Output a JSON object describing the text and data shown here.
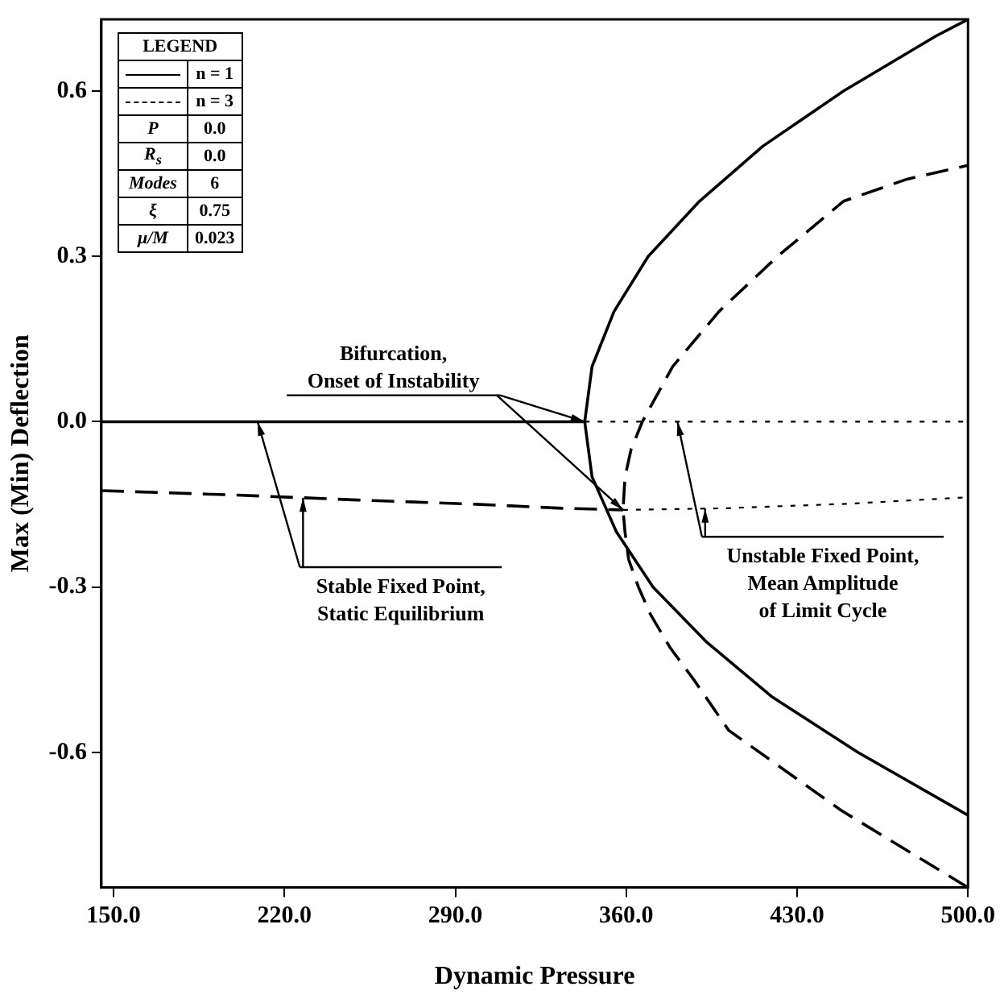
{
  "chart_data": {
    "type": "line",
    "xlabel": "Dynamic Pressure",
    "ylabel": "Max (Min) Deflection",
    "legend_title": "LEGEND",
    "legend": "top left",
    "grid": false,
    "marker": "none",
    "xlim": [
      145,
      500
    ],
    "ylim": [
      -0.845,
      0.73
    ],
    "xticks": [
      {
        "value": 150,
        "label": "150.0"
      },
      {
        "value": 220,
        "label": "220.0"
      },
      {
        "value": 290,
        "label": "290.0"
      },
      {
        "value": 360,
        "label": "360.0"
      },
      {
        "value": 430,
        "label": "430.0"
      },
      {
        "value": 500,
        "label": "500.0"
      }
    ],
    "yticks": [
      {
        "value": -0.6,
        "label": "-0.6"
      },
      {
        "value": -0.3,
        "label": "-0.3"
      },
      {
        "value": 0,
        "label": "0.0"
      },
      {
        "value": 0.3,
        "label": "0.3"
      },
      {
        "value": 0.6,
        "label": "0.6"
      }
    ],
    "series": [
      {
        "name": "n = 1",
        "color": "#000000",
        "line_style": "solid",
        "x": [
          500,
          455,
          420,
          393,
          371,
          356,
          346,
          343,
          346,
          355,
          369,
          390,
          416,
          449,
          487,
          500
        ],
        "values": [
          -0.714,
          -0.6,
          -0.5,
          -0.4,
          -0.3,
          -0.2,
          -0.1,
          0,
          0.1,
          0.2,
          0.3,
          0.4,
          0.5,
          0.6,
          0.7,
          0.73
        ]
      },
      {
        "color": "#000000",
        "line_style": "solid",
        "x": [
          145,
          343
        ],
        "values": [
          0,
          0
        ]
      },
      {
        "color": "#000000",
        "line_style": "dotted",
        "x": [
          343,
          500
        ],
        "values": [
          0,
          0
        ]
      },
      {
        "name": "n = 3",
        "color": "#000000",
        "line_style": "dashed",
        "x": [
          500,
          448,
          402,
          388,
          378,
          370,
          365,
          361,
          359.5,
          358.7,
          359.5,
          362,
          366.6,
          379,
          398,
          422,
          449,
          475,
          500
        ],
        "values": [
          -0.845,
          -0.705,
          -0.56,
          -0.47,
          -0.41,
          -0.35,
          -0.3,
          -0.25,
          -0.2,
          -0.16,
          -0.1,
          -0.05,
          0,
          0.1,
          0.2,
          0.3,
          0.4,
          0.44,
          0.465
        ]
      },
      {
        "color": "#000000",
        "line_style": "dashed",
        "x": [
          145,
          200,
          250,
          300,
          333.6,
          358.7
        ],
        "values": [
          -0.125,
          -0.133,
          -0.142,
          -0.15,
          -0.157,
          -0.16
        ]
      },
      {
        "color": "#000000",
        "line_style": "dotted",
        "x": [
          358.7,
          400,
          450,
          500
        ],
        "values": [
          -0.16,
          -0.157,
          -0.149,
          -0.137
        ]
      }
    ],
    "annotations": [
      {
        "text": "Bifurcation,\nOnset of Instability",
        "x": 343,
        "y": 0
      },
      {
        "text": "Stable Fixed Point,\nStatic Equilibrium",
        "x": 209,
        "y": 0
      },
      {
        "text": "Unstable Fixed Point,\nMean Amplitude\nof Limit Cycle",
        "x": 381,
        "y": 0
      },
      "P\t0.0",
      "R$_{s}$\t0.0",
      "Modes\t6",
      "ξ\t0.75",
      "μ/M\t0.023"
    ]
  }
}
